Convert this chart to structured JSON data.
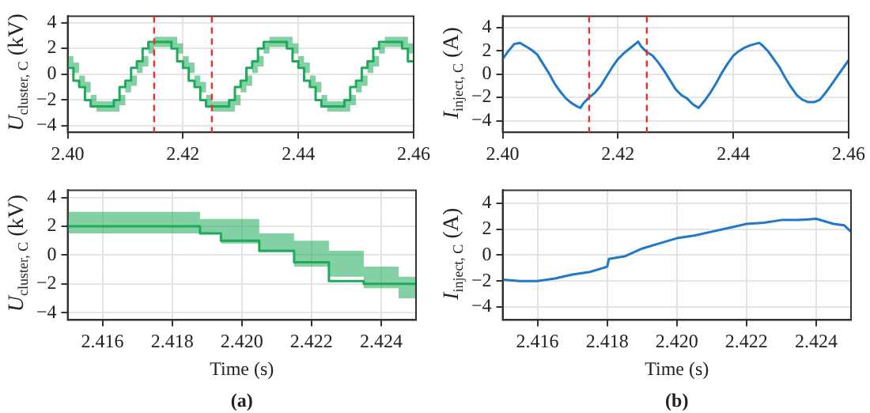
{
  "chart_data": [
    {
      "type": "step",
      "ylabel": "U$_{cluster, C}$ (kV)",
      "xlim": [
        2.4,
        2.46
      ],
      "xticks": [
        {
          "value": 2.4,
          "label": "2.40"
        },
        {
          "value": 2.42,
          "label": "2.42"
        },
        {
          "value": 2.44,
          "label": "2.44"
        },
        {
          "value": 2.46,
          "label": "2.46"
        }
      ],
      "ylim": [
        -4.5,
        4.5
      ],
      "yticks": [
        -4,
        -2,
        0,
        2,
        4
      ],
      "grid": true,
      "legend": false,
      "ref_lines": [
        {
          "axis": "x",
          "value": 2.415,
          "color": "#e8322a",
          "line_style": "dashed"
        },
        {
          "axis": "x",
          "value": 2.425,
          "color": "#e8322a",
          "line_style": "dashed"
        }
      ],
      "series": [
        {
          "color": "#1daa5a",
          "x": [
            2.4,
            2.401,
            2.402,
            2.403,
            2.404,
            2.405,
            2.406,
            2.407,
            2.408,
            2.409,
            2.41,
            2.411,
            2.412,
            2.413,
            2.414,
            2.415,
            2.416,
            2.417,
            2.418,
            2.419,
            2.42,
            2.421,
            2.422,
            2.423,
            2.424,
            2.425,
            2.426,
            2.427,
            2.428,
            2.429,
            2.43,
            2.431,
            2.432,
            2.433,
            2.434,
            2.435,
            2.436,
            2.437,
            2.438,
            2.439,
            2.44,
            2.441,
            2.442,
            2.443,
            2.444,
            2.445,
            2.446,
            2.447,
            2.448,
            2.449,
            2.45,
            2.451,
            2.452,
            2.453,
            2.454,
            2.455,
            2.456,
            2.457,
            2.458,
            2.459,
            2.46
          ],
          "values": [
            1,
            0.5,
            -0.5,
            -1,
            -2,
            -2.5,
            -2.5,
            -2.5,
            -2.5,
            -2,
            -1,
            -0.5,
            0.5,
            1,
            2,
            2.5,
            2.5,
            2.5,
            2.5,
            2,
            1,
            0.5,
            -0.5,
            -1,
            -2,
            -2.5,
            -2.5,
            -2.5,
            -2.5,
            -2,
            -1,
            -0.5,
            0.5,
            1,
            2,
            2.5,
            2.5,
            2.5,
            2.5,
            2,
            1,
            0.5,
            -0.5,
            -1,
            -2,
            -2.5,
            -2.5,
            -2.5,
            -2.5,
            -2,
            -1,
            -0.5,
            0.5,
            1,
            2,
            2.5,
            2.5,
            2.5,
            2.5,
            2,
            1
          ],
          "lower": [
            0.6,
            0.1,
            -0.9,
            -1.4,
            -2.4,
            -2.9,
            -2.9,
            -2.9,
            -2.9,
            -2.4,
            -1.4,
            -0.9,
            0.1,
            0.6,
            1.6,
            2.1,
            2.1,
            2.1,
            2.1,
            1.6,
            0.6,
            0.1,
            -0.9,
            -1.4,
            -2.4,
            -2.9,
            -2.9,
            -2.9,
            -2.9,
            -2.4,
            -1.4,
            -0.9,
            0.1,
            0.6,
            1.6,
            2.1,
            2.1,
            2.1,
            2.1,
            1.6,
            0.6,
            0.1,
            -0.9,
            -1.4,
            -2.4,
            -2.9,
            -2.9,
            -2.9,
            -2.9,
            -2.4,
            -1.4,
            -0.9,
            0.1,
            0.6,
            1.6,
            2.1,
            2.1,
            2.1,
            2.1,
            1.6,
            0.6
          ],
          "upper": [
            1.4,
            0.9,
            -0.1,
            -0.6,
            -1.6,
            -2.1,
            -2.1,
            -2.1,
            -2.1,
            -1.6,
            -0.6,
            -0.1,
            0.9,
            1.4,
            2.4,
            2.9,
            2.9,
            2.9,
            2.9,
            2.4,
            1.4,
            0.9,
            -0.1,
            -0.6,
            -1.6,
            -2.1,
            -2.1,
            -2.1,
            -2.1,
            -1.6,
            -0.6,
            -0.1,
            0.9,
            1.4,
            2.4,
            2.9,
            2.9,
            2.9,
            2.9,
            2.4,
            1.4,
            0.9,
            -0.1,
            -0.6,
            -1.6,
            -2.1,
            -2.1,
            -2.1,
            -2.1,
            -1.6,
            -0.6,
            -0.1,
            0.9,
            1.4,
            2.4,
            2.9,
            2.9,
            2.9,
            2.9,
            2.4,
            1.4
          ]
        }
      ]
    },
    {
      "type": "line",
      "ylabel": "I$_{inject, C}$ (A)",
      "xlim": [
        2.4,
        2.46
      ],
      "xticks": [
        {
          "value": 2.4,
          "label": "2.40"
        },
        {
          "value": 2.42,
          "label": "2.42"
        },
        {
          "value": 2.44,
          "label": "2.44"
        },
        {
          "value": 2.46,
          "label": "2.46"
        }
      ],
      "ylim": [
        -5,
        5
      ],
      "yticks": [
        -4,
        -2,
        0,
        2,
        4
      ],
      "grid": true,
      "legend": false,
      "ref_lines": [
        {
          "axis": "x",
          "value": 2.415,
          "color": "#e8322a",
          "line_style": "dashed"
        },
        {
          "axis": "x",
          "value": 2.425,
          "color": "#e8322a",
          "line_style": "dashed"
        }
      ],
      "series": [
        {
          "color": "#1f78c8",
          "x": [
            2.4,
            2.401,
            2.402,
            2.403,
            2.404,
            2.405,
            2.406,
            2.407,
            2.408,
            2.409,
            2.41,
            2.411,
            2.412,
            2.413,
            2.4135,
            2.414,
            2.415,
            2.416,
            2.417,
            2.418,
            2.419,
            2.42,
            2.421,
            2.422,
            2.423,
            2.4235,
            2.424,
            2.425,
            2.426,
            2.427,
            2.428,
            2.429,
            2.43,
            2.431,
            2.432,
            2.433,
            2.434,
            2.435,
            2.436,
            2.437,
            2.438,
            2.439,
            2.44,
            2.441,
            2.442,
            2.443,
            2.4445,
            2.445,
            2.446,
            2.447,
            2.448,
            2.449,
            2.45,
            2.451,
            2.452,
            2.453,
            2.454,
            2.455,
            2.456,
            2.457,
            2.458,
            2.459,
            2.46
          ],
          "values": [
            1.3,
            2,
            2.6,
            2.7,
            2.4,
            2.1,
            1.7,
            0.9,
            0.1,
            -0.8,
            -1.5,
            -2.1,
            -2.5,
            -2.8,
            -2.9,
            -2.5,
            -2,
            -1.6,
            -1,
            -0.2,
            0.6,
            1.3,
            1.8,
            2.2,
            2.6,
            2.8,
            2.4,
            1.9,
            1.6,
            1,
            0.3,
            -0.5,
            -1.3,
            -1.8,
            -2.1,
            -2.6,
            -2.9,
            -2.3,
            -1.6,
            -0.8,
            0.1,
            0.9,
            1.6,
            2,
            2.3,
            2.5,
            2.7,
            2.5,
            2,
            1.3,
            0.6,
            -0.3,
            -1.1,
            -1.8,
            -2.2,
            -2.4,
            -2.4,
            -2.2,
            -1.6,
            -0.9,
            -0.2,
            0.5,
            1.2
          ]
        }
      ]
    },
    {
      "type": "step",
      "ylabel": "U$_{cluster, C}$ (kV)",
      "xlabel": "Time (s)",
      "xlim": [
        2.415,
        2.425
      ],
      "xticks": [
        2.416,
        2.418,
        {
          "value": 2.42,
          "label": "2.420"
        },
        2.422,
        2.424
      ],
      "ylim": [
        -4.5,
        4.5
      ],
      "yticks": [
        -4,
        -2,
        0,
        2,
        4
      ],
      "grid": true,
      "legend": false,
      "annotations": [
        "(a)"
      ],
      "series": [
        {
          "color": "#1daa5a",
          "x": [
            2.415,
            2.4188,
            2.4194,
            2.4205,
            2.4215,
            2.4225,
            2.4235,
            2.4245,
            2.425
          ],
          "values": [
            2.5,
            2,
            1.5,
            1,
            0.3,
            -0.5,
            -1.8,
            -2,
            -2
          ],
          "lower": [
            1.5,
            1.5,
            0.8,
            0.2,
            -0.8,
            -1.5,
            -2.3,
            -3,
            -3
          ],
          "upper": [
            3,
            2.5,
            2.5,
            1.5,
            1,
            0.3,
            -0.8,
            -1.5,
            -1.5
          ]
        }
      ]
    },
    {
      "type": "line",
      "ylabel": "I$_{inject, C}$ (A)",
      "xlabel": "Time (s)",
      "xlim": [
        2.415,
        2.425
      ],
      "xticks": [
        2.416,
        2.418,
        {
          "value": 2.42,
          "label": "2.420"
        },
        2.422,
        2.424
      ],
      "ylim": [
        -5,
        5
      ],
      "yticks": [
        -4,
        -2,
        0,
        2,
        4
      ],
      "grid": true,
      "legend": false,
      "annotations": [
        "(b)"
      ],
      "series": [
        {
          "color": "#1f78c8",
          "x": [
            2.415,
            2.4155,
            2.416,
            2.4165,
            2.417,
            2.4175,
            2.418,
            2.41805,
            2.4185,
            2.419,
            2.4195,
            2.42,
            2.4205,
            2.421,
            2.4215,
            2.422,
            2.4225,
            2.423,
            2.4235,
            2.424,
            2.4245,
            2.4248,
            2.425
          ],
          "values": [
            -1.9,
            -2,
            -2,
            -1.8,
            -1.5,
            -1.3,
            -0.9,
            -0.3,
            -0.1,
            0.5,
            0.9,
            1.3,
            1.5,
            1.8,
            2.1,
            2.4,
            2.5,
            2.7,
            2.7,
            2.8,
            2.4,
            2.3,
            1.8
          ]
        }
      ]
    }
  ]
}
